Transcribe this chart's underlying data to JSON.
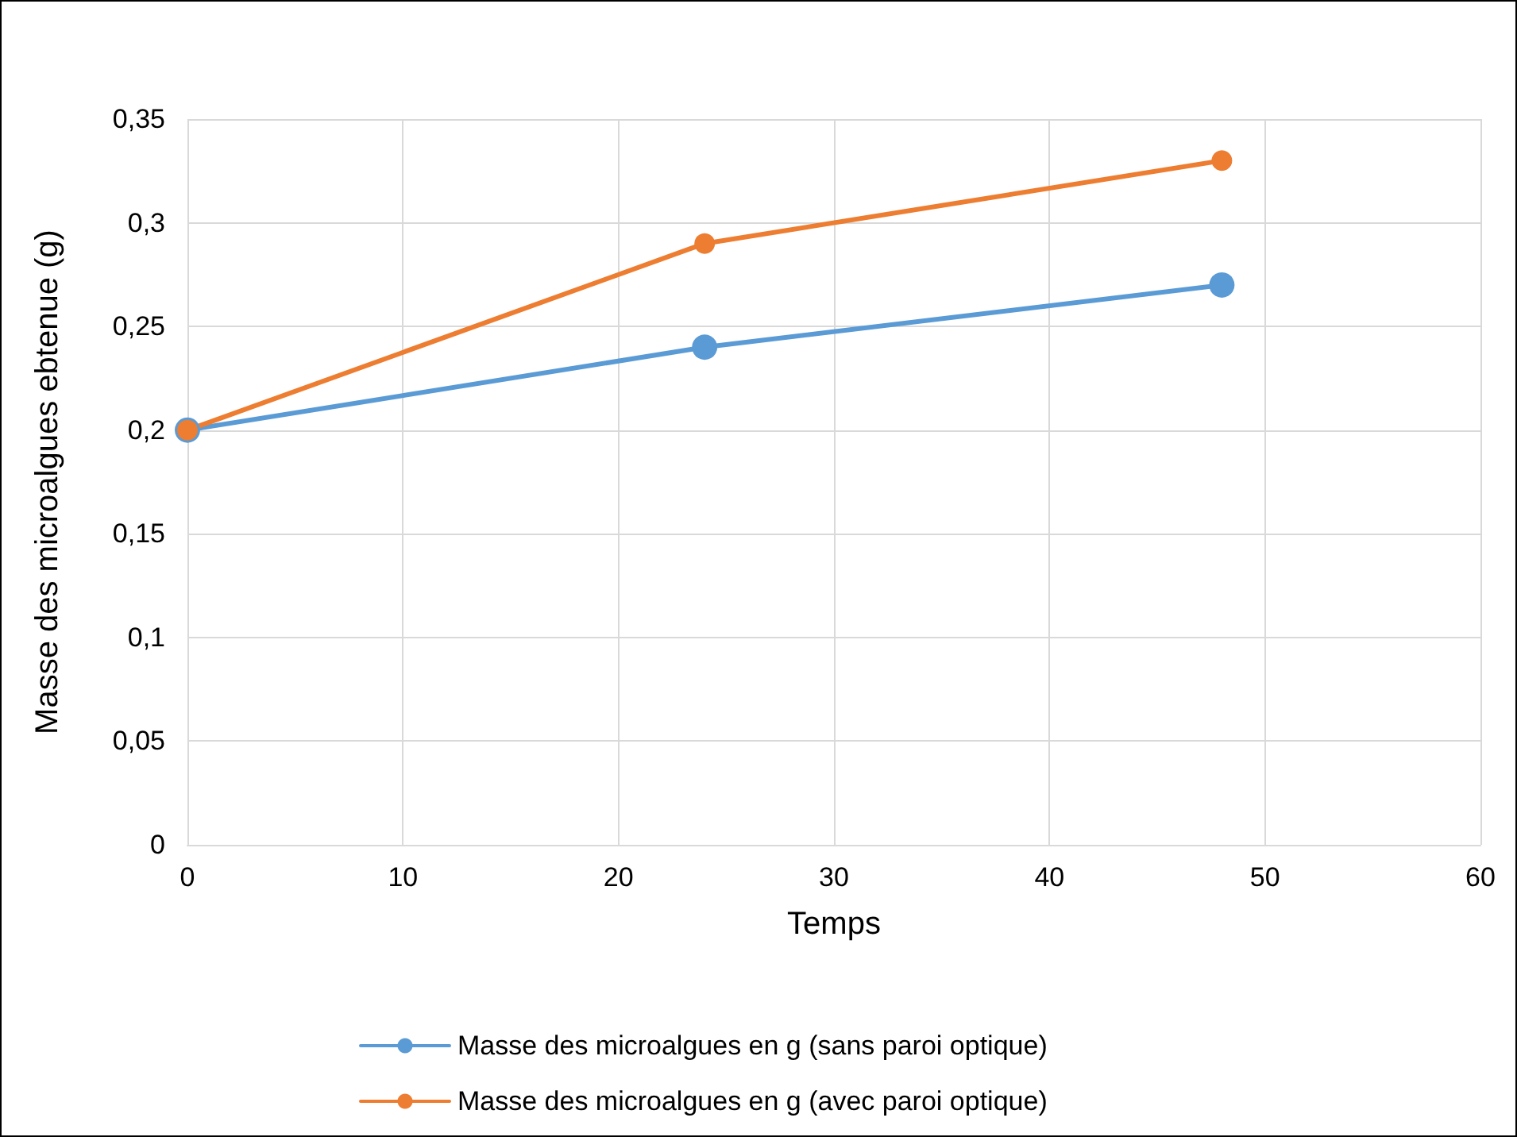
{
  "chart_data": {
    "type": "line",
    "xlabel": "Temps",
    "ylabel": "Masse des microalgues ebtenue (g)",
    "series": [
      {
        "name": "Masse des microalgues en g (sans paroi optique)",
        "color": "#5b9bd5",
        "x": [
          0,
          24,
          48
        ],
        "values": [
          0.2,
          0.24,
          0.27
        ]
      },
      {
        "name": "Masse des microalgues en g (avec paroi optique)",
        "color": "#ed7d31",
        "x": [
          0,
          24,
          48
        ],
        "values": [
          0.2,
          0.29,
          0.33
        ]
      }
    ],
    "xlim": [
      0,
      60
    ],
    "xticks": [
      0,
      10,
      20,
      30,
      40,
      50,
      60
    ],
    "ylim": [
      0,
      0.35
    ],
    "yticks": [
      0,
      {
        "value": 0.05,
        "label": "0,05"
      },
      {
        "value": 0.1,
        "label": "0,1"
      },
      {
        "value": 0.15,
        "label": "0,15"
      },
      {
        "value": 0.2,
        "label": "0,2"
      },
      {
        "value": 0.25,
        "label": "0,25"
      },
      {
        "value": 0.3,
        "label": "0,3"
      },
      {
        "value": 0.35,
        "label": "0,35"
      }
    ],
    "grid": true,
    "legend": "bottom",
    "marker": "circle",
    "line_style": "solid"
  }
}
